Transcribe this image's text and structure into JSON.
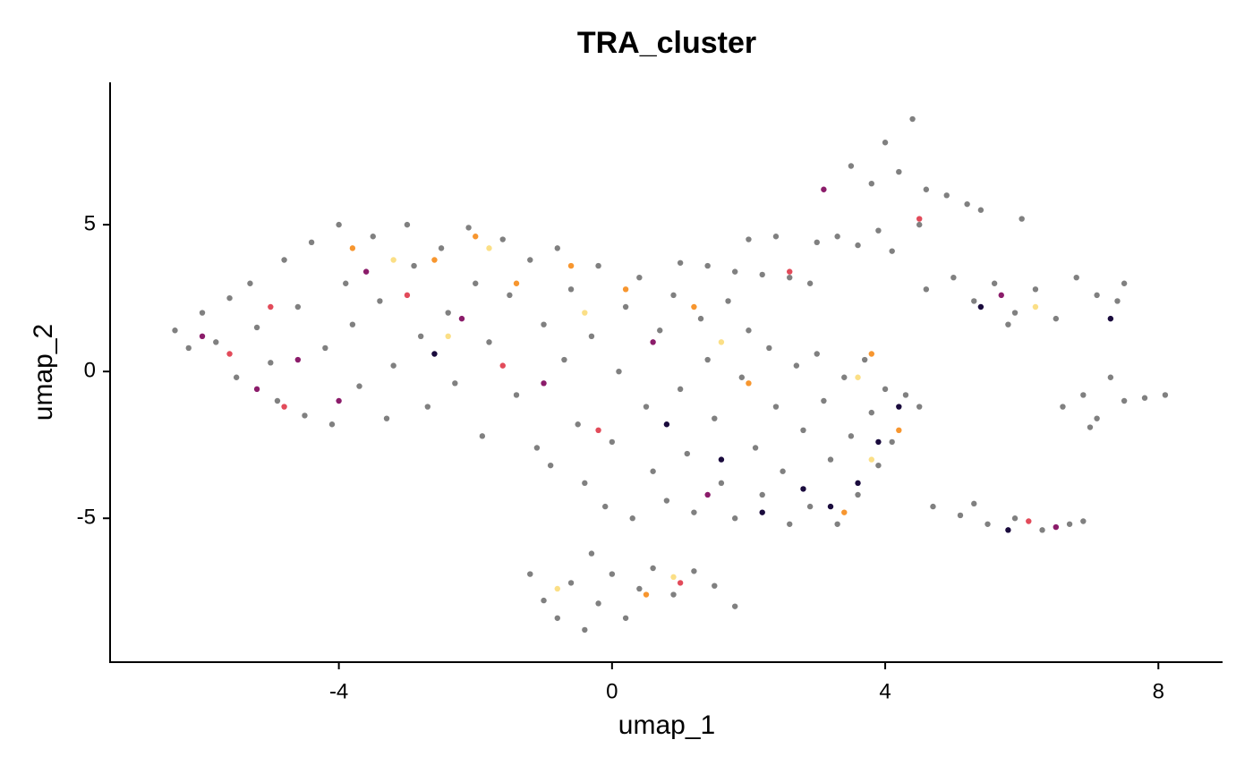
{
  "chart_data": {
    "type": "scatter",
    "title": "TRA_cluster",
    "x_label": "umap_1",
    "y_label": "umap_2",
    "xlim": [
      -7.35,
      8.94
    ],
    "ylim": [
      -9.9,
      9.85
    ],
    "xticks": [
      -4,
      0,
      4,
      8
    ],
    "yticks": [
      -5,
      0,
      5
    ],
    "grid": false,
    "series": [
      {
        "color": "#808080",
        "x": [
          -6.4,
          -6.2,
          -6.0,
          -5.8,
          -5.6,
          -5.5,
          -5.3,
          -5.2,
          -5.0,
          -4.9,
          -4.8,
          -4.6,
          -4.5,
          -4.4,
          -4.2,
          -4.1,
          -4.0,
          -3.9,
          -3.8,
          -3.7,
          -3.5,
          -3.4,
          -3.3,
          -3.2,
          -3.0,
          -2.9,
          -2.8,
          -2.7,
          -2.5,
          -2.4,
          -2.3,
          -2.1,
          -2.0,
          -1.9,
          -1.8,
          -1.6,
          -1.5,
          -1.4,
          -1.2,
          -1.1,
          -1.0,
          -0.9,
          -0.8,
          -0.7,
          -0.6,
          -0.5,
          -0.4,
          -0.3,
          -0.2,
          -0.1,
          0.0,
          0.1,
          0.2,
          0.3,
          0.4,
          0.5,
          0.6,
          0.7,
          0.8,
          0.9,
          1.0,
          1.1,
          1.2,
          1.3,
          1.4,
          1.5,
          1.6,
          1.7,
          1.8,
          1.9,
          2.0,
          2.1,
          2.2,
          2.3,
          2.4,
          2.5,
          2.6,
          2.7,
          2.8,
          2.9,
          3.0,
          3.1,
          3.2,
          3.3,
          3.4,
          3.5,
          3.6,
          3.7,
          3.8,
          3.9,
          4.0,
          4.1,
          4.3,
          4.5,
          -1.2,
          -1.0,
          -0.8,
          -0.6,
          -0.4,
          -0.2,
          0.0,
          0.2,
          0.4,
          0.6,
          0.9,
          1.2,
          1.5,
          1.8,
          -0.3,
          3.0,
          3.3,
          3.6,
          3.9,
          4.1,
          4.2,
          4.4,
          4.0,
          3.8,
          4.6,
          4.9,
          5.2,
          5.4,
          4.5,
          6.0,
          2.0,
          2.4,
          3.5,
          1.0,
          1.4,
          1.8,
          2.2,
          2.6,
          2.9,
          4.6,
          5.0,
          5.3,
          5.6,
          5.9,
          6.2,
          6.5,
          6.8,
          7.1,
          7.4,
          7.5,
          5.8,
          6.6,
          6.9,
          7.1,
          7.3,
          7.5,
          7.8,
          8.1,
          7.0,
          4.7,
          5.1,
          5.5,
          5.9,
          6.3,
          6.7,
          6.9,
          5.3
        ],
        "values": [
          1.4,
          0.8,
          2.0,
          1.0,
          2.5,
          -0.2,
          3.0,
          1.5,
          0.3,
          -1.0,
          3.8,
          2.2,
          -1.5,
          4.4,
          0.8,
          -1.8,
          5.0,
          3.0,
          1.6,
          -0.5,
          4.6,
          2.4,
          -1.6,
          0.2,
          5.0,
          3.6,
          1.2,
          -1.2,
          4.2,
          2.0,
          -0.4,
          4.9,
          3.0,
          -2.2,
          1.0,
          4.5,
          2.6,
          -0.8,
          3.8,
          -2.6,
          1.6,
          -3.2,
          4.2,
          0.4,
          2.8,
          -1.8,
          -3.8,
          1.2,
          3.6,
          -4.6,
          -2.4,
          0.0,
          2.2,
          -5.0,
          3.2,
          -1.2,
          -3.4,
          1.4,
          -4.4,
          2.6,
          -0.6,
          -2.8,
          -4.8,
          1.8,
          0.4,
          -1.6,
          -3.8,
          2.4,
          -5.0,
          -0.2,
          1.4,
          -2.6,
          -4.2,
          0.8,
          -1.2,
          -3.4,
          -5.2,
          0.2,
          -2.0,
          -4.6,
          0.6,
          -1.0,
          -3.0,
          -5.2,
          -0.2,
          -2.2,
          -4.2,
          0.4,
          -1.4,
          -3.2,
          -0.6,
          -2.4,
          -0.8,
          -1.2,
          -6.9,
          -7.8,
          -8.4,
          -7.2,
          -8.8,
          -7.9,
          -6.9,
          -8.4,
          -7.4,
          -6.7,
          -7.6,
          -6.8,
          -7.3,
          -8.0,
          -6.2,
          4.4,
          4.6,
          4.3,
          4.8,
          4.1,
          6.8,
          8.6,
          7.8,
          6.4,
          6.2,
          6.0,
          5.7,
          5.5,
          5.0,
          5.2,
          4.5,
          4.6,
          7.0,
          3.7,
          3.6,
          3.4,
          3.3,
          3.2,
          3.0,
          2.8,
          3.2,
          2.4,
          3.0,
          2.0,
          2.8,
          1.8,
          3.2,
          2.6,
          2.4,
          3.0,
          1.6,
          -1.2,
          -0.8,
          -1.6,
          -0.2,
          -1.0,
          -0.9,
          -0.8,
          -1.9,
          -4.6,
          -4.9,
          -5.2,
          -5.0,
          -5.4,
          -5.2,
          -5.1,
          -4.5
        ]
      },
      {
        "color": "#1a0b3d",
        "x": [
          3.2,
          3.6,
          3.9,
          2.8,
          4.2,
          2.2,
          -2.6,
          5.4,
          7.3,
          5.8,
          1.6,
          0.8
        ],
        "values": [
          -4.6,
          -3.8,
          -2.4,
          -4.0,
          -1.2,
          -4.8,
          0.6,
          2.2,
          1.8,
          -5.4,
          -3.0,
          -1.8
        ]
      },
      {
        "color": "#8b1c6a",
        "x": [
          -6.0,
          -5.2,
          -4.6,
          -3.6,
          -2.2,
          -1.0,
          0.6,
          3.1,
          5.7,
          6.5,
          1.4,
          -4.0
        ],
        "values": [
          1.2,
          -0.6,
          0.4,
          3.4,
          1.8,
          -0.4,
          1.0,
          6.2,
          2.6,
          -5.3,
          -4.2,
          -1.0
        ]
      },
      {
        "color": "#e24b5a",
        "x": [
          -5.6,
          -4.8,
          -3.0,
          -1.6,
          -0.2,
          4.5,
          2.6,
          -5.0,
          6.1,
          1.0
        ],
        "values": [
          0.6,
          -1.2,
          2.6,
          0.2,
          -2.0,
          5.2,
          3.4,
          2.2,
          -5.1,
          -7.2
        ]
      },
      {
        "color": "#f7962f",
        "x": [
          -3.8,
          -2.6,
          -1.4,
          -0.6,
          0.2,
          1.2,
          2.0,
          3.8,
          4.2,
          3.4,
          -2.0,
          0.5
        ],
        "values": [
          4.2,
          3.8,
          3.0,
          3.6,
          2.8,
          2.2,
          -0.4,
          0.6,
          -2.0,
          -4.8,
          4.6,
          -7.6
        ]
      },
      {
        "color": "#fbdf86",
        "x": [
          -3.2,
          -1.8,
          -0.4,
          1.6,
          3.6,
          3.8,
          0.9,
          -0.8,
          6.2,
          -2.4
        ],
        "values": [
          3.8,
          4.2,
          2.0,
          1.0,
          -0.2,
          -3.0,
          -7.0,
          -7.4,
          2.2,
          1.2
        ]
      }
    ]
  }
}
